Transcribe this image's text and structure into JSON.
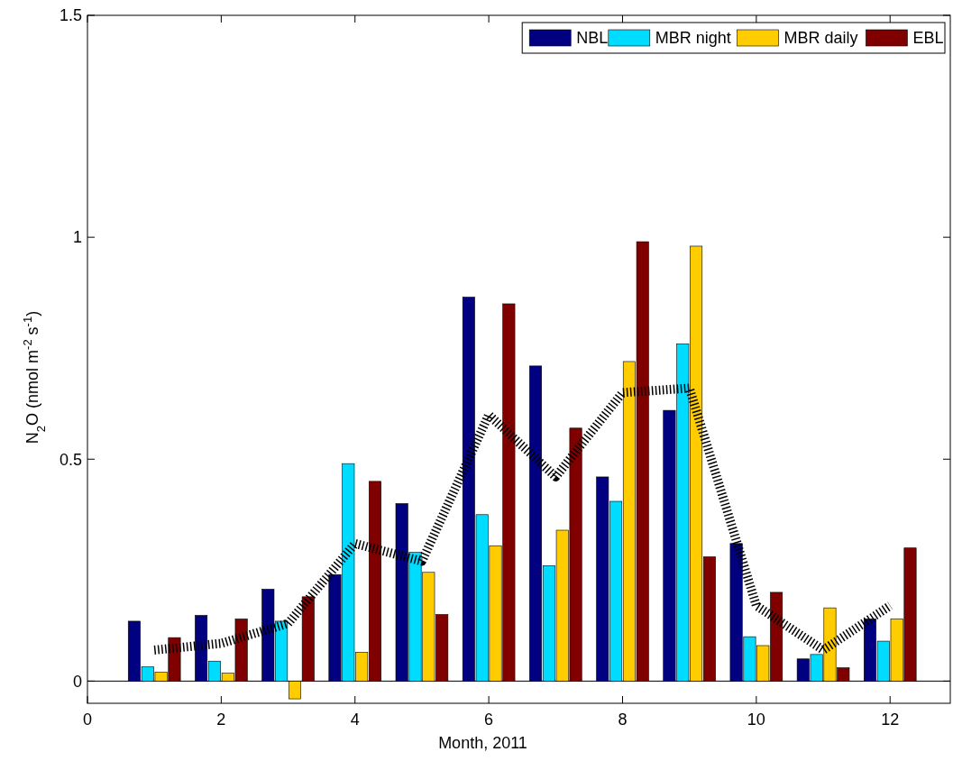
{
  "chart_data": {
    "type": "bar",
    "xlabel": "Month, 2011",
    "ylabel": "N$_{2}$O (nmol m$^{-2}$ s$^{-1}$)",
    "x": [
      1,
      2,
      3,
      4,
      5,
      6,
      7,
      8,
      9,
      10,
      11,
      12
    ],
    "series": [
      {
        "name": "NBL",
        "color": "#000080",
        "values": [
          0.135,
          0.148,
          0.207,
          0.24,
          0.4,
          0.865,
          0.71,
          0.46,
          0.61,
          0.31,
          0.05,
          0.14
        ]
      },
      {
        "name": "MBR night",
        "color": "#00dcff",
        "values": [
          0.032,
          0.045,
          0.135,
          0.49,
          0.29,
          0.375,
          0.26,
          0.405,
          0.76,
          0.1,
          0.06,
          0.09
        ]
      },
      {
        "name": "MBR daily",
        "color": "#ffcc00",
        "values": [
          0.02,
          0.018,
          -0.04,
          0.065,
          0.245,
          0.305,
          0.34,
          0.72,
          0.98,
          0.08,
          0.165,
          0.14
        ]
      },
      {
        "name": "EBL",
        "color": "#800000",
        "values": [
          0.098,
          0.14,
          0.19,
          0.45,
          0.15,
          0.85,
          0.57,
          0.99,
          0.28,
          0.2,
          0.03,
          0.3
        ]
      },
      {
        "type": "line",
        "color": "#000000",
        "line_style": "dotted",
        "values": [
          0.07,
          0.085,
          0.13,
          0.31,
          0.27,
          0.6,
          0.46,
          0.65,
          0.66,
          0.17,
          0.07,
          0.17
        ]
      }
    ],
    "xlim": [
      0,
      12.9
    ],
    "xticks": [
      0,
      2,
      4,
      6,
      8,
      10,
      12
    ],
    "ylim": [
      -0.05,
      1.5
    ],
    "yticks": [
      0,
      0.5,
      1,
      1.5
    ],
    "legend": "top right"
  }
}
